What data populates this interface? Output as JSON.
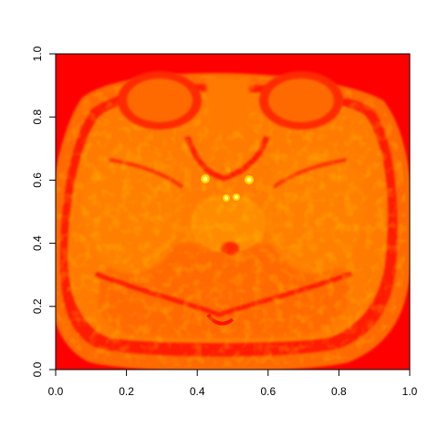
{
  "chart_data": {
    "type": "heatmap",
    "title": "",
    "xlabel": "",
    "ylabel": "",
    "xlim": [
      0,
      1
    ],
    "ylim": [
      0,
      1
    ],
    "x_ticks": [
      "0.0",
      "0.2",
      "0.4",
      "0.6",
      "0.8",
      "1.0"
    ],
    "y_ticks": [
      "0.0",
      "0.2",
      "0.4",
      "0.6",
      "0.8",
      "1.0"
    ],
    "x_tick_values": [
      0.0,
      0.2,
      0.4,
      0.6,
      0.8,
      1.0
    ],
    "y_tick_values": [
      0.0,
      0.2,
      0.4,
      0.6,
      0.8,
      1.0
    ],
    "grid": false,
    "legend": "none",
    "colormap": "heat",
    "colors": {
      "low": "#ff0000",
      "mid_low": "#ff4000",
      "mid": "#ff6a00",
      "mid_high": "#ff8a00",
      "high": "#ffd400",
      "max": "#ffff60"
    },
    "description": "Axial brain MRI slice rendered as a heat-colormap image"
  }
}
